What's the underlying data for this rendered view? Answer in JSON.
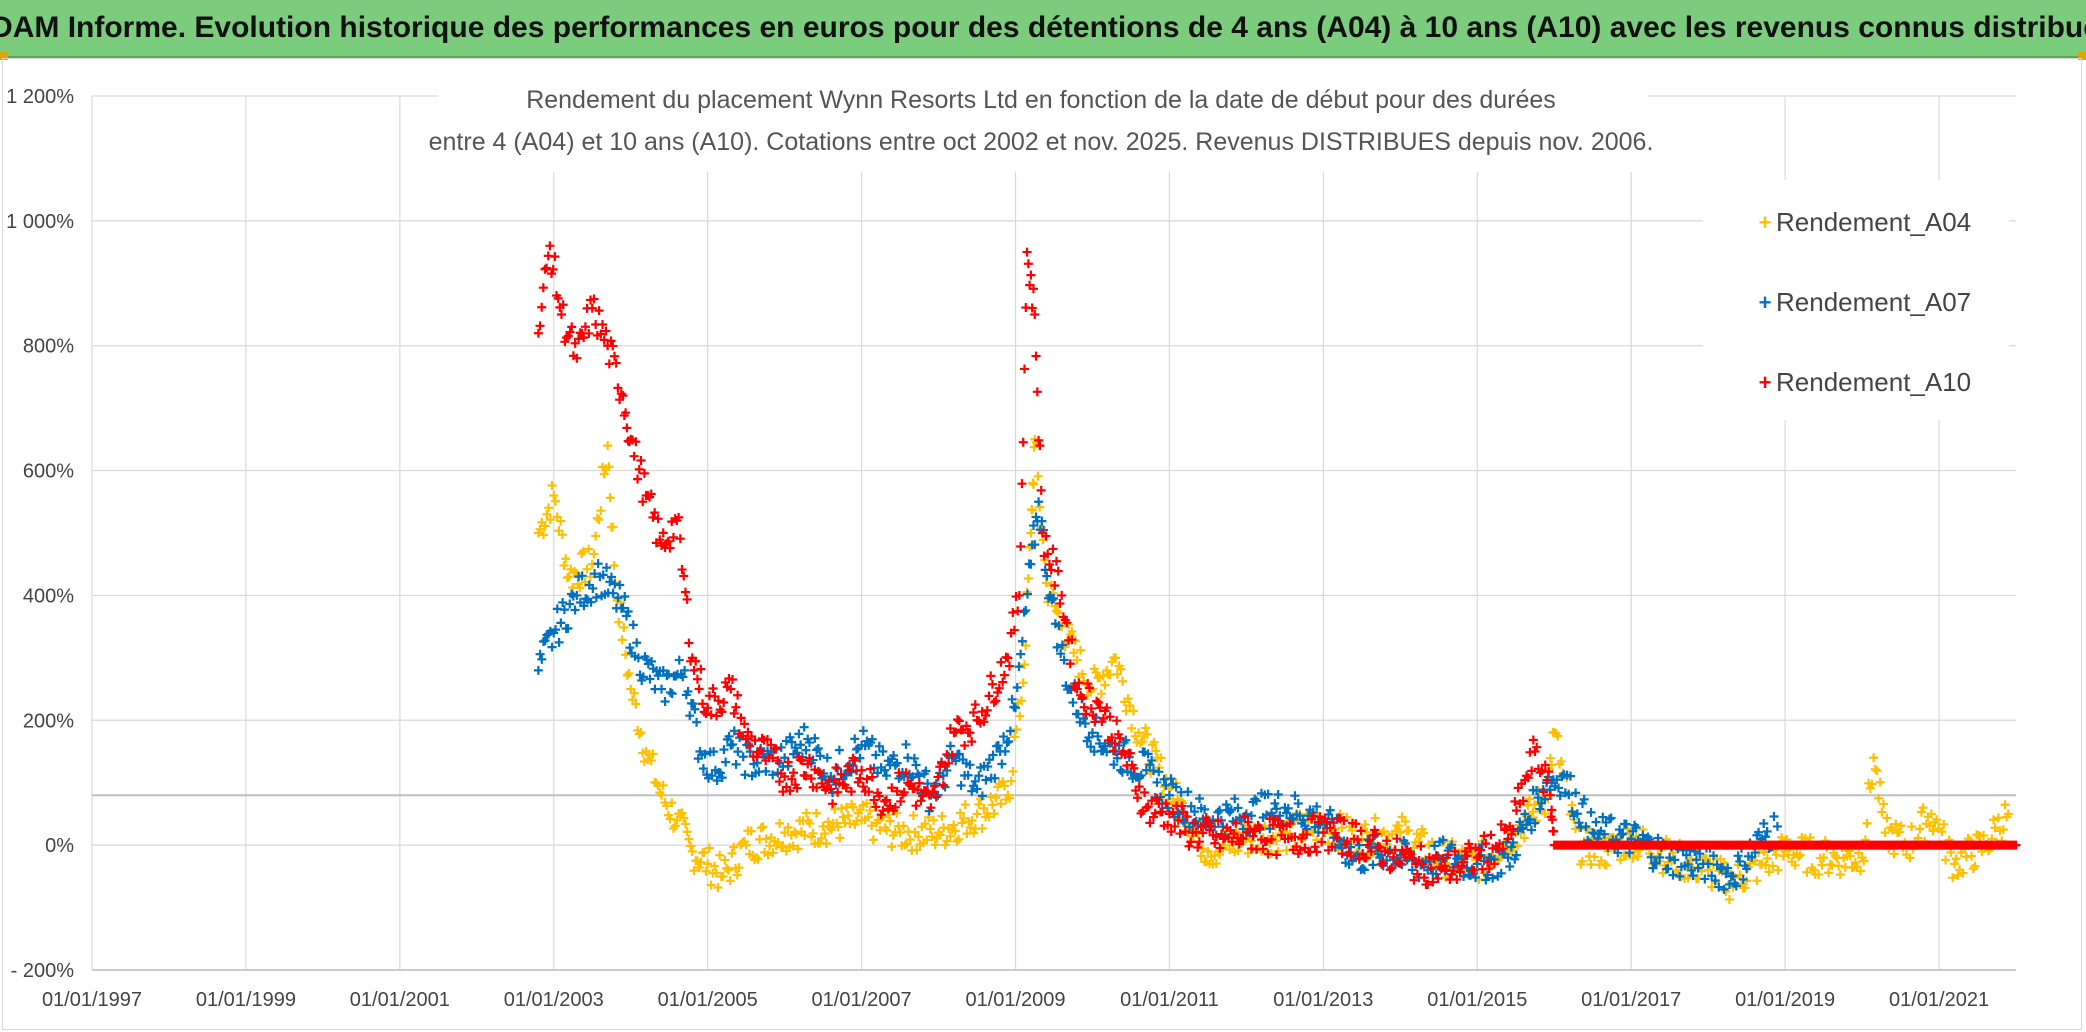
{
  "banner": {
    "title": "ADAM Informe. Evolution historique des performances en euros pour des détentions de 4 ans (A04) à 10 ans (A10) avec les revenus connus distribués"
  },
  "colors": {
    "banner": "#7ccc7e",
    "A04": "#ffc000",
    "A07": "#0070c0",
    "A10": "#ff0000",
    "grid": "#d9d9d9",
    "ref_line": "#bfbfbf"
  },
  "chart_data": {
    "type": "scatter",
    "title_lines": [
      "Rendement du placement Wynn Resorts Ltd en fonction de la date de début pour des durées",
      "entre 4 (A04) et 10 ans (A10). Cotations entre oct 2002 et nov. 2025. Revenus DISTRIBUES depuis nov. 2006."
    ],
    "xlabel": "",
    "ylabel": "",
    "x_range": [
      1997.0,
      2022.0
    ],
    "x_ticks": [
      "01/01/1997",
      "01/01/1999",
      "01/01/2001",
      "01/01/2003",
      "01/01/2005",
      "01/01/2007",
      "01/01/2009",
      "01/01/2011",
      "01/01/2013",
      "01/01/2015",
      "01/01/2017",
      "01/01/2019",
      "01/01/2021"
    ],
    "y_range": [
      -200,
      1200
    ],
    "y_ticks": [
      "- 200%",
      "0%",
      "200%",
      "400%",
      "600%",
      "800%",
      "1 000%",
      "1 200%"
    ],
    "reference_line_y": 80,
    "legend_position": "right",
    "series": [
      {
        "name": "Rendement_A04",
        "points": [
          [
            2002.8,
            500
          ],
          [
            2003.0,
            560
          ],
          [
            2003.2,
            430
          ],
          [
            2003.5,
            450
          ],
          [
            2003.7,
            640
          ],
          [
            2003.8,
            420
          ],
          [
            2004.0,
            250
          ],
          [
            2004.2,
            150
          ],
          [
            2004.4,
            80
          ],
          [
            2004.6,
            40
          ],
          [
            2004.8,
            -10
          ],
          [
            2005.0,
            -30
          ],
          [
            2005.2,
            -50
          ],
          [
            2005.5,
            0
          ],
          [
            2006.0,
            20
          ],
          [
            2006.5,
            30
          ],
          [
            2007.0,
            40
          ],
          [
            2007.5,
            20
          ],
          [
            2008.0,
            20
          ],
          [
            2008.5,
            50
          ],
          [
            2008.9,
            80
          ],
          [
            2009.1,
            260
          ],
          [
            2009.2,
            500
          ],
          [
            2009.25,
            650
          ],
          [
            2009.4,
            420
          ],
          [
            2009.6,
            350
          ],
          [
            2010.0,
            250
          ],
          [
            2010.3,
            300
          ],
          [
            2010.6,
            180
          ],
          [
            2011.0,
            90
          ],
          [
            2011.5,
            -10
          ],
          [
            2012.0,
            10
          ],
          [
            2012.5,
            20
          ],
          [
            2013.0,
            30
          ],
          [
            2013.5,
            10
          ],
          [
            2014.0,
            20
          ],
          [
            2014.5,
            -20
          ],
          [
            2015.0,
            -30
          ],
          [
            2015.5,
            20
          ],
          [
            2015.9,
            80
          ],
          [
            2016.0,
            180
          ],
          [
            2016.3,
            0
          ],
          [
            2016.7,
            -10
          ],
          [
            2017.0,
            10
          ],
          [
            2017.5,
            -20
          ],
          [
            2018.0,
            -40
          ],
          [
            2018.3,
            -60
          ],
          [
            2018.7,
            -30
          ],
          [
            2019.0,
            -10
          ],
          [
            2019.5,
            -20
          ],
          [
            2020.0,
            -20
          ],
          [
            2020.15,
            140
          ],
          [
            2020.3,
            20
          ],
          [
            2020.6,
            0
          ],
          [
            2020.9,
            50
          ],
          [
            2021.2,
            -30
          ],
          [
            2021.6,
            0
          ],
          [
            2021.9,
            50
          ]
        ]
      },
      {
        "name": "Rendement_A07",
        "points": [
          [
            2002.8,
            280
          ],
          [
            2003.0,
            340
          ],
          [
            2003.3,
            400
          ],
          [
            2003.6,
            430
          ],
          [
            2003.9,
            380
          ],
          [
            2004.1,
            300
          ],
          [
            2004.4,
            250
          ],
          [
            2004.7,
            280
          ],
          [
            2004.9,
            150
          ],
          [
            2005.1,
            120
          ],
          [
            2005.3,
            160
          ],
          [
            2005.6,
            130
          ],
          [
            2006.0,
            140
          ],
          [
            2006.3,
            170
          ],
          [
            2006.6,
            110
          ],
          [
            2007.0,
            160
          ],
          [
            2007.3,
            120
          ],
          [
            2007.6,
            140
          ],
          [
            2007.9,
            80
          ],
          [
            2008.2,
            140
          ],
          [
            2008.5,
            90
          ],
          [
            2008.8,
            150
          ],
          [
            2009.0,
            220
          ],
          [
            2009.2,
            450
          ],
          [
            2009.3,
            550
          ],
          [
            2009.45,
            400
          ],
          [
            2009.7,
            250
          ],
          [
            2010.0,
            180
          ],
          [
            2010.3,
            150
          ],
          [
            2010.7,
            120
          ],
          [
            2011.0,
            80
          ],
          [
            2011.5,
            40
          ],
          [
            2012.0,
            50
          ],
          [
            2012.5,
            60
          ],
          [
            2013.0,
            40
          ],
          [
            2013.4,
            -20
          ],
          [
            2013.8,
            -10
          ],
          [
            2014.2,
            -30
          ],
          [
            2014.6,
            -20
          ],
          [
            2015.0,
            -30
          ],
          [
            2015.4,
            -20
          ],
          [
            2015.9,
            100
          ],
          [
            2016.1,
            110
          ],
          [
            2016.5,
            20
          ],
          [
            2017.0,
            10
          ],
          [
            2017.5,
            -20
          ],
          [
            2018.0,
            -30
          ],
          [
            2018.3,
            -50
          ],
          [
            2018.7,
            10
          ],
          [
            2018.9,
            30
          ]
        ]
      },
      {
        "name": "Rendement_A10",
        "points": [
          [
            2002.8,
            820
          ],
          [
            2002.95,
            960
          ],
          [
            2003.1,
            850
          ],
          [
            2003.3,
            780
          ],
          [
            2003.5,
            860
          ],
          [
            2003.7,
            800
          ],
          [
            2003.9,
            720
          ],
          [
            2004.0,
            650
          ],
          [
            2004.2,
            560
          ],
          [
            2004.4,
            480
          ],
          [
            2004.6,
            520
          ],
          [
            2004.8,
            300
          ],
          [
            2005.0,
            220
          ],
          [
            2005.3,
            250
          ],
          [
            2005.5,
            170
          ],
          [
            2005.8,
            140
          ],
          [
            2006.0,
            110
          ],
          [
            2006.3,
            130
          ],
          [
            2006.6,
            90
          ],
          [
            2007.0,
            120
          ],
          [
            2007.3,
            70
          ],
          [
            2007.6,
            100
          ],
          [
            2007.9,
            60
          ],
          [
            2008.2,
            180
          ],
          [
            2008.5,
            200
          ],
          [
            2008.9,
            300
          ],
          [
            2009.05,
            400
          ],
          [
            2009.15,
            950
          ],
          [
            2009.25,
            850
          ],
          [
            2009.35,
            500
          ],
          [
            2009.6,
            400
          ],
          [
            2009.8,
            250
          ],
          [
            2010.1,
            220
          ],
          [
            2010.4,
            150
          ],
          [
            2010.7,
            60
          ],
          [
            2011.0,
            50
          ],
          [
            2011.3,
            20
          ],
          [
            2011.7,
            10
          ],
          [
            2012.0,
            20
          ],
          [
            2012.5,
            10
          ],
          [
            2013.0,
            20
          ],
          [
            2013.4,
            10
          ],
          [
            2013.8,
            -10
          ],
          [
            2014.2,
            -30
          ],
          [
            2014.6,
            -40
          ],
          [
            2015.0,
            -20
          ],
          [
            2015.4,
            10
          ],
          [
            2015.75,
            150
          ],
          [
            2015.95,
            80
          ],
          [
            2016.0,
            0
          ],
          [
            2018.0,
            0
          ],
          [
            2020.0,
            0
          ],
          [
            2022.0,
            0
          ]
        ]
      }
    ]
  }
}
